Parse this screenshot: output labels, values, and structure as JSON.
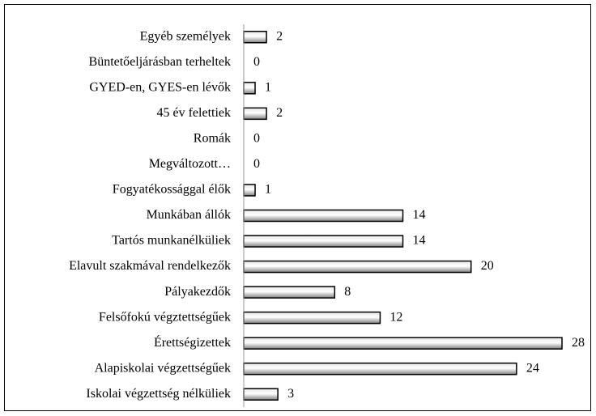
{
  "chart_data": {
    "type": "hbar",
    "categories": [
      "Egyéb személyek",
      "Büntetőeljárásban terheltek",
      "GYED-en, GYES-en lévők",
      "45 év felettiek",
      "Romák",
      "Megváltozott…",
      "Fogyatékossággal élők",
      "Munkában állók",
      "Tartós munkanélküliek",
      "Elavult szakmával rendelkezők",
      "Pályakezdők",
      "Felsőfokú végztettségűek",
      "Érettségizettek",
      "Alapiskolai végzettségűek",
      "Iskolai végzettség nélküliek"
    ],
    "values": [
      2,
      0,
      1,
      2,
      0,
      0,
      1,
      14,
      14,
      20,
      8,
      12,
      28,
      24,
      3
    ],
    "color": "#a6a6a6",
    "xlim": [
      0,
      28
    ]
  }
}
